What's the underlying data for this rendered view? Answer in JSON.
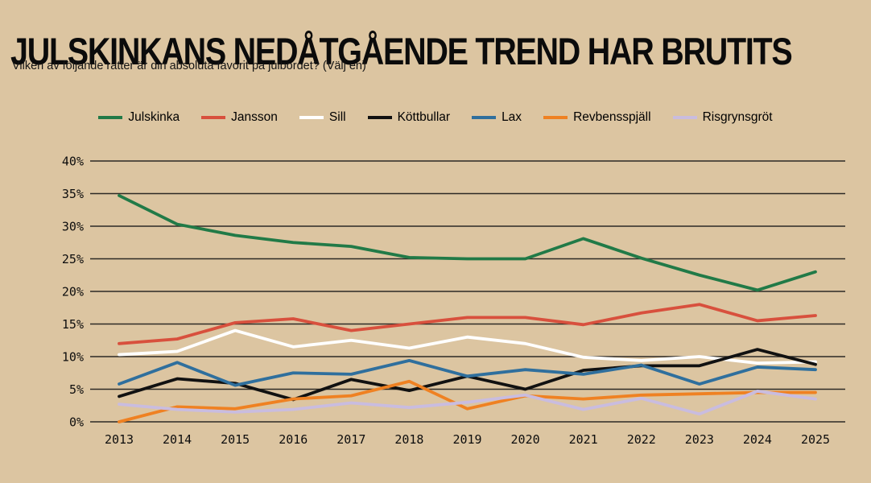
{
  "page": {
    "title": "JULSKINKANS NEDÅTGÅENDE TREND HAR BRUTITS",
    "subtitle": "Vilken av följande rätter är din absoluta favorit på julbordet? (Välj en)"
  },
  "colors": {
    "background": "#dcc5a1",
    "gridline": "#2d2a25",
    "text": "#0d0d0d"
  },
  "chart_data": {
    "type": "line",
    "title": "JULSKINKANS NEDÅTGÅENDE TREND HAR BRUTITS",
    "subtitle": "Vilken av följande rätter är din absoluta favorit på julbordet? (Välj en)",
    "x": [
      2013,
      2014,
      2015,
      2016,
      2017,
      2018,
      2019,
      2020,
      2021,
      2022,
      2023,
      2024,
      2025
    ],
    "xtick_labels": [
      "2013",
      "2014",
      "2015",
      "2016",
      "2017",
      "2018",
      "2019",
      "2020",
      "2021",
      "2022",
      "2023",
      "2024",
      "2025"
    ],
    "ylim": [
      0,
      40
    ],
    "ytick_step": 5,
    "ytick_labels": [
      "0%",
      "5%",
      "10%",
      "15%",
      "20%",
      "25%",
      "30%",
      "35%",
      "40%"
    ],
    "xlabel": "",
    "ylabel": "",
    "grid": true,
    "legend_position": "top",
    "series": [
      {
        "name": "Julskinka",
        "color": "#217a47",
        "values": [
          34.7,
          30.3,
          28.6,
          27.5,
          26.9,
          25.2,
          25.0,
          25.0,
          28.1,
          25.1,
          22.5,
          20.2,
          23.0
        ]
      },
      {
        "name": "Jansson",
        "color": "#d8503d",
        "values": [
          12.0,
          12.7,
          15.2,
          15.8,
          14.0,
          15.0,
          16.0,
          16.0,
          14.9,
          16.7,
          18.0,
          15.5,
          16.3
        ]
      },
      {
        "name": "Sill",
        "color": "#ffffff",
        "values": [
          10.3,
          10.8,
          14.0,
          11.5,
          12.5,
          11.3,
          13.0,
          12.0,
          9.9,
          9.4,
          10.0,
          9.0,
          9.2
        ]
      },
      {
        "name": "Köttbullar",
        "color": "#111111",
        "values": [
          3.9,
          6.6,
          5.9,
          3.4,
          6.5,
          4.8,
          7.0,
          5.0,
          7.9,
          8.6,
          8.6,
          11.1,
          8.8
        ]
      },
      {
        "name": "Lax",
        "color": "#2f6f9d",
        "values": [
          5.8,
          9.1,
          5.6,
          7.5,
          7.3,
          9.4,
          7.0,
          8.0,
          7.3,
          8.7,
          5.8,
          8.4,
          8.0
        ]
      },
      {
        "name": "Revbensspjäll",
        "color": "#ef8122",
        "values": [
          0.0,
          2.3,
          2.0,
          3.5,
          4.0,
          6.2,
          2.0,
          4.0,
          3.5,
          4.1,
          4.3,
          4.5,
          4.5
        ]
      },
      {
        "name": "Risgrynsgröt",
        "color": "#c9bcdf",
        "values": [
          2.7,
          1.9,
          1.5,
          1.9,
          2.9,
          2.2,
          3.0,
          4.1,
          1.9,
          3.6,
          1.2,
          4.7,
          3.5
        ]
      }
    ]
  }
}
